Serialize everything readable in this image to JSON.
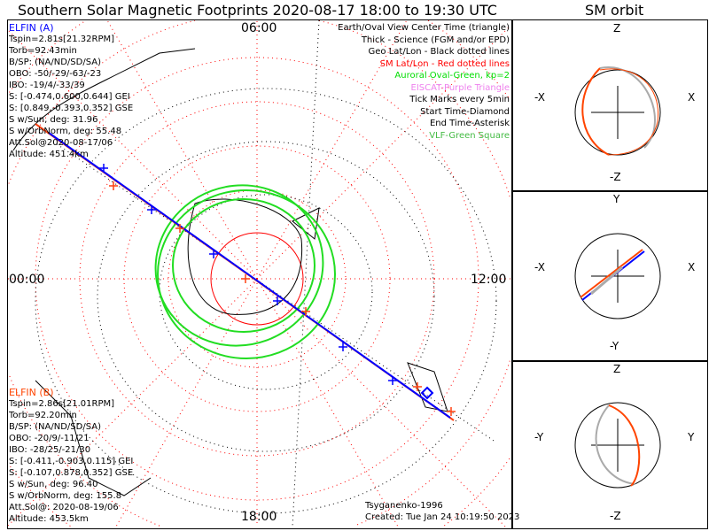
{
  "title": "Southern Solar Magnetic Footprints 2020-08-17 18:00 to 19:30 UTC",
  "sm_title": "SM orbit",
  "map": {
    "top": "06:00",
    "bottom": "18:00",
    "left": "00:00",
    "right": "12:00"
  },
  "elfin_a": {
    "name": "ELFIN (A)",
    "lines": [
      "Tspin=2.81s[21.32RPM]",
      "Torb=92.43min",
      "B/SP: (NA/ND/SD/SA)",
      "OBO: -50/-29/-63/-23",
      "IBO: -19/4/-33/39",
      "S: [-0.474,0.600,0.644] GEI",
      "S: [0.849,-0.393,0.352] GSE",
      "S w/Sun, deg: 31.96",
      "S w/OrbNorm, deg: 55.48",
      "Att.Sol@2020-08-17/06",
      "Altitude: 451.4km"
    ]
  },
  "elfin_b": {
    "name": "ELFIN (B)",
    "lines": [
      "Tspin=2.86s[21.01RPM]",
      "Torb=92.20min",
      "B/SP: (NA/ND/SD/SA)",
      "OBO: -20/9/-11/21",
      "IBO: -28/25/-21/30",
      "S: [-0.411,-0.903,0.115] GEI",
      "S: [-0.107,0.878,0.352] GSE",
      "S w/Sun, deg: 96.40",
      "S w/OrbNorm, deg: 155.8",
      "Att.Sol@: 2020-08-19/06",
      "Altitude: 453.5km"
    ]
  },
  "legend": [
    {
      "text": "Earth/Oval View Center Time (triangle)",
      "color": "#000000"
    },
    {
      "text": "Thick - Science (FGM and/or EPD)",
      "color": "#000000"
    },
    {
      "text": "Geo Lat/Lon - Black dotted lines",
      "color": "#000000"
    },
    {
      "text": "SM Lat/Lon - Red dotted lines",
      "color": "#ff0000"
    },
    {
      "text": "Auroral Oval-Green, kp=2",
      "color": "#00dd00"
    },
    {
      "text": "EISCAT-Purple Triangle",
      "color": "#ee82ee"
    },
    {
      "text": "Tick Marks every 5min",
      "color": "#000000"
    },
    {
      "text": "Start Time-Diamond",
      "color": "#000000"
    },
    {
      "text": "End Time-Asterisk",
      "color": "#000000"
    },
    {
      "text": "VLF-Green Square",
      "color": "#44bb44"
    }
  ],
  "credit": "Tsyganenko-1996",
  "created": "Created: Tue Jan 24 10:19:50 2023",
  "orbit_panels": [
    {
      "top": "Z",
      "bottom": "-Z",
      "left": "-X",
      "right": "X"
    },
    {
      "top": "Y",
      "bottom": "-Y",
      "left": "-X",
      "right": "X"
    },
    {
      "top": "Z",
      "bottom": "-Z",
      "left": "-Y",
      "right": "Y"
    }
  ],
  "colors": {
    "a": "#0000ff",
    "b": "#ff4010",
    "oval": "#00dd00",
    "grid": "#ff0000"
  }
}
